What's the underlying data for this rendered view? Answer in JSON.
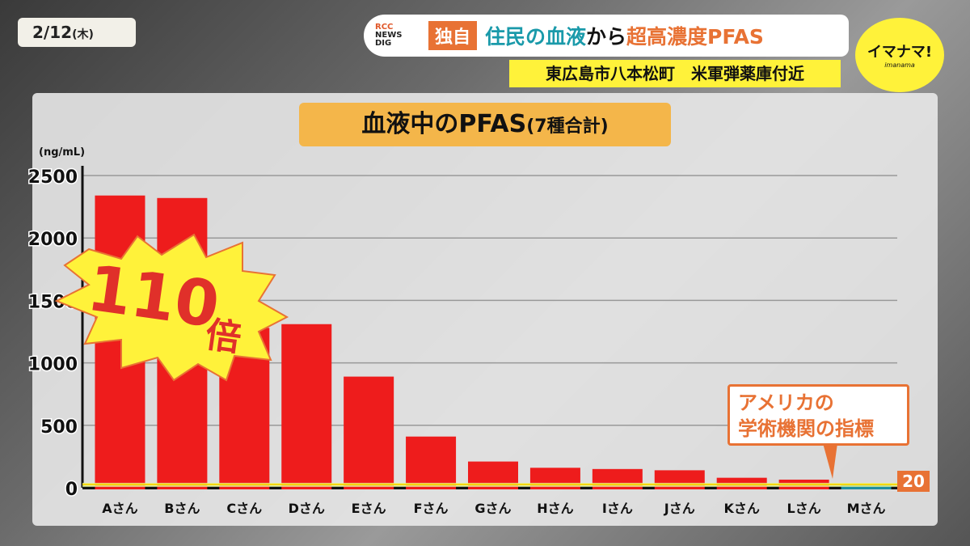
{
  "date": {
    "text": "2/12",
    "weekday": "(木)"
  },
  "banner": {
    "logo_top": "RCC",
    "logo_mid": "NEWS",
    "logo_bot": "DIG",
    "tag": "独自",
    "headline_part1": "住民の血液",
    "headline_part2": "から",
    "headline_part3": "超高濃度PFAS",
    "subheadline": "東広島市八本松町　米軍弾薬庫付近"
  },
  "program": {
    "name": "イマナマ!",
    "romaji": "imanama"
  },
  "colors": {
    "bar": "#ee1c1c",
    "accent": "#e87234",
    "headline_teal": "#1a9aaa",
    "threshold_line": "#f6d600",
    "reference_bar": "#1e8fa0",
    "burst": "#fff23a"
  },
  "burst": {
    "text": "110",
    "suffix": "倍"
  },
  "callout": {
    "line1": "アメリカの",
    "line2": "学術機関の指標",
    "value": "20"
  },
  "chart_data": {
    "type": "bar",
    "title": "血液中のPFAS",
    "title_suffix": "(7種合計)",
    "ylabel": "(ng/mL)",
    "categories": [
      "Aさん",
      "Bさん",
      "Cさん",
      "Dさん",
      "Eさん",
      "Fさん",
      "Gさん",
      "Hさん",
      "Iさん",
      "Jさん",
      "Kさん",
      "Lさん",
      "Mさん"
    ],
    "values": [
      2340,
      2320,
      1280,
      1310,
      890,
      410,
      210,
      160,
      150,
      140,
      80,
      65,
      20
    ],
    "ylim": [
      0,
      2500
    ],
    "yticks": [
      0,
      500,
      1000,
      1500,
      2000,
      2500
    ],
    "threshold": 20,
    "grid": true
  }
}
